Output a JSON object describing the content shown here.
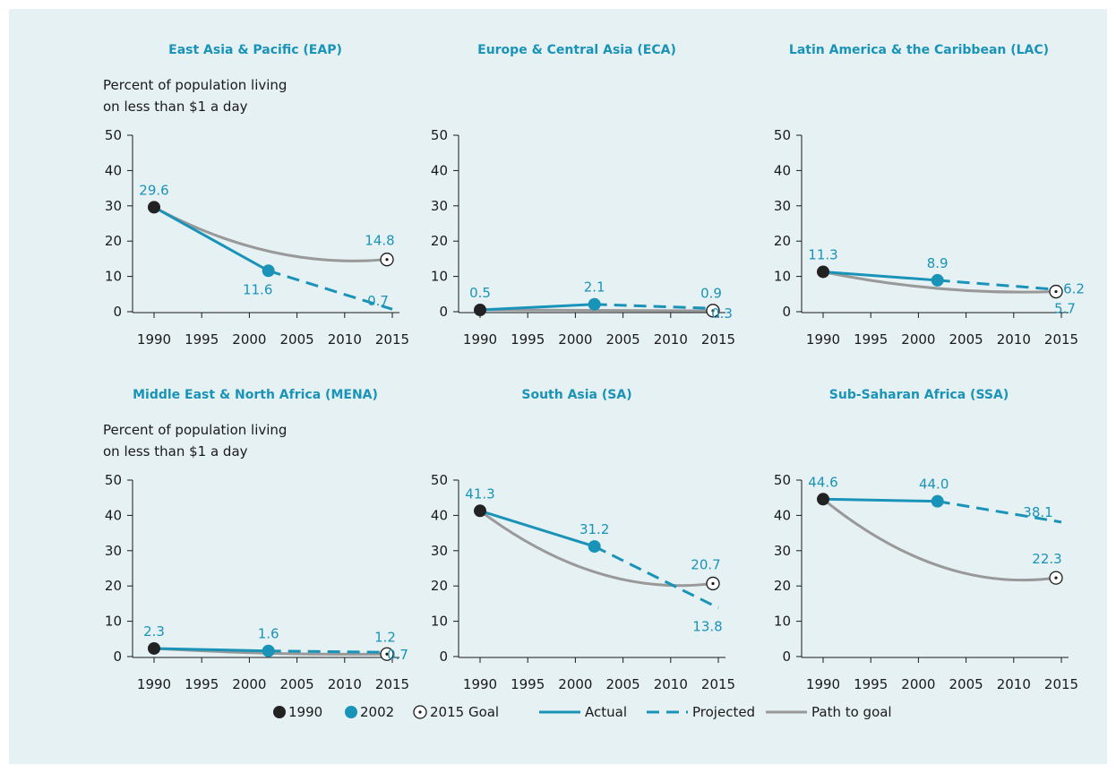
{
  "colors": {
    "background": "#e6f1f4",
    "title": "#1a93b8",
    "actual": "#1a93b8",
    "path_to_goal": "#999999",
    "marker_1990": "#222222",
    "marker_2002": "#1a93b8"
  },
  "legend": {
    "items": [
      {
        "label": "1990",
        "symbol": "dot-black"
      },
      {
        "label": "2002",
        "symbol": "dot-blue"
      },
      {
        "label": "2015 Goal",
        "symbol": "goal-circle"
      },
      {
        "label": "Actual",
        "symbol": "line-solid"
      },
      {
        "label": "Projected",
        "symbol": "line-dashed"
      },
      {
        "label": "Path to goal",
        "symbol": "line-gray"
      }
    ]
  },
  "chart_data": [
    {
      "type": "line",
      "title": "East Asia & Pacific (EAP)",
      "ylabel": "Percent of population living on less than $1 a day",
      "ylabel_lines": [
        "Percent of population living",
        "on less than $1 a day"
      ],
      "xlim": [
        1990,
        2015
      ],
      "ylim": [
        0,
        50
      ],
      "xticks": [
        1990,
        1995,
        2000,
        2005,
        2010,
        2015
      ],
      "yticks": [
        0,
        10,
        20,
        30,
        40,
        50
      ],
      "actual": [
        [
          1990,
          29.6
        ],
        [
          2002,
          11.6
        ]
      ],
      "projected": [
        [
          2002,
          11.6
        ],
        [
          2015,
          0.7
        ]
      ],
      "path_to_goal": [
        [
          1990,
          29.6
        ],
        [
          2015,
          14.8
        ]
      ],
      "labels": {
        "v1990": "29.6",
        "v2002": "11.6",
        "goal": "14.8",
        "proj": "0.7"
      }
    },
    {
      "type": "line",
      "title": "Europe & Central Asia (ECA)",
      "xlim": [
        1990,
        2015
      ],
      "ylim": [
        0,
        50
      ],
      "xticks": [
        1990,
        1995,
        2000,
        2005,
        2010,
        2015
      ],
      "yticks": [
        0,
        10,
        20,
        30,
        40,
        50
      ],
      "actual": [
        [
          1990,
          0.5
        ],
        [
          2002,
          2.1
        ]
      ],
      "projected": [
        [
          2002,
          2.1
        ],
        [
          2015,
          0.9
        ]
      ],
      "path_to_goal": [
        [
          1990,
          0.5
        ],
        [
          2015,
          0.3
        ]
      ],
      "labels": {
        "v1990": "0.5",
        "v2002": "2.1",
        "goal": "0.3",
        "proj": "0.9"
      }
    },
    {
      "type": "line",
      "title": "Latin America & the Caribbean (LAC)",
      "xlim": [
        1990,
        2015
      ],
      "ylim": [
        0,
        50
      ],
      "xticks": [
        1990,
        1995,
        2000,
        2005,
        2010,
        2015
      ],
      "yticks": [
        0,
        10,
        20,
        30,
        40,
        50
      ],
      "actual": [
        [
          1990,
          11.3
        ],
        [
          2002,
          8.9
        ]
      ],
      "projected": [
        [
          2002,
          8.9
        ],
        [
          2015,
          6.2
        ]
      ],
      "path_to_goal": [
        [
          1990,
          11.3
        ],
        [
          2015,
          5.7
        ]
      ],
      "labels": {
        "v1990": "11.3",
        "v2002": "8.9",
        "goal": "5.7",
        "proj": "6.2"
      }
    },
    {
      "type": "line",
      "title": "Middle East & North Africa (MENA)",
      "ylabel": "Percent of population living on less than $1 a day",
      "ylabel_lines": [
        "Percent of population living",
        "on less than $1 a day"
      ],
      "xlim": [
        1990,
        2015
      ],
      "ylim": [
        0,
        50
      ],
      "xticks": [
        1990,
        1995,
        2000,
        2005,
        2010,
        2015
      ],
      "yticks": [
        0,
        10,
        20,
        30,
        40,
        50
      ],
      "actual": [
        [
          1990,
          2.3
        ],
        [
          2002,
          1.6
        ]
      ],
      "projected": [
        [
          2002,
          1.6
        ],
        [
          2015,
          1.2
        ]
      ],
      "path_to_goal": [
        [
          1990,
          2.3
        ],
        [
          2015,
          0.7
        ]
      ],
      "labels": {
        "v1990": "2.3",
        "v2002": "1.6",
        "goal": "0.7",
        "proj": "1.2"
      }
    },
    {
      "type": "line",
      "title": "South Asia (SA)",
      "xlim": [
        1990,
        2015
      ],
      "ylim": [
        0,
        50
      ],
      "xticks": [
        1990,
        1995,
        2000,
        2005,
        2010,
        2015
      ],
      "yticks": [
        0,
        10,
        20,
        30,
        40,
        50
      ],
      "actual": [
        [
          1990,
          41.3
        ],
        [
          2002,
          31.2
        ]
      ],
      "projected": [
        [
          2002,
          31.2
        ],
        [
          2015,
          13.8
        ]
      ],
      "path_to_goal": [
        [
          1990,
          41.3
        ],
        [
          2015,
          20.7
        ]
      ],
      "labels": {
        "v1990": "41.3",
        "v2002": "31.2",
        "goal": "20.7",
        "proj": "13.8"
      }
    },
    {
      "type": "line",
      "title": "Sub-Saharan Africa (SSA)",
      "xlim": [
        1990,
        2015
      ],
      "ylim": [
        0,
        50
      ],
      "xticks": [
        1990,
        1995,
        2000,
        2005,
        2010,
        2015
      ],
      "yticks": [
        0,
        10,
        20,
        30,
        40,
        50
      ],
      "actual": [
        [
          1990,
          44.6
        ],
        [
          2002,
          44.0
        ]
      ],
      "projected": [
        [
          2002,
          44.0
        ],
        [
          2015,
          38.1
        ]
      ],
      "path_to_goal": [
        [
          1990,
          44.6
        ],
        [
          2015,
          22.3
        ]
      ],
      "labels": {
        "v1990": "44.6",
        "v2002": "44.0",
        "goal": "22.3",
        "proj": "38.1"
      }
    }
  ]
}
